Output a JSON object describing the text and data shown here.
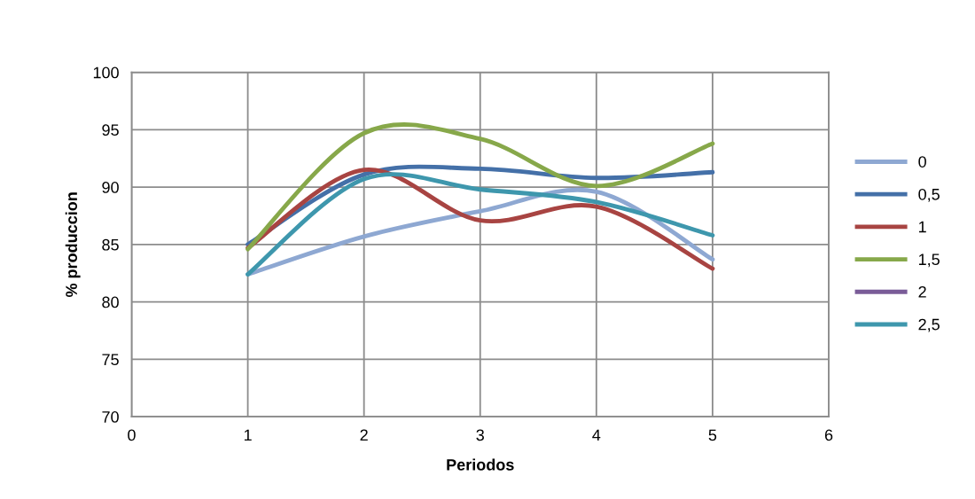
{
  "chart_data": {
    "type": "line",
    "xlabel": "Periodos",
    "ylabel": "% produccion",
    "x": [
      1,
      2,
      3,
      4,
      5
    ],
    "series": [
      {
        "name": "0",
        "color": "#8ea8d2",
        "values": [
          82.4,
          85.7,
          87.9,
          89.6,
          83.7
        ]
      },
      {
        "name": "0,5",
        "color": "#4470a8",
        "values": [
          85.0,
          91.1,
          91.6,
          90.8,
          91.3
        ]
      },
      {
        "name": "1",
        "color": "#a84442",
        "values": [
          84.7,
          91.5,
          87.1,
          88.3,
          82.9
        ]
      },
      {
        "name": "1,5",
        "color": "#87a84a",
        "values": [
          84.6,
          94.7,
          94.2,
          90.1,
          93.8
        ]
      },
      {
        "name": "2",
        "color": "#7a5c98",
        "values": [
          null,
          null,
          null,
          null,
          null
        ]
      },
      {
        "name": "2,5",
        "color": "#3e97ad",
        "values": [
          82.4,
          90.7,
          89.8,
          88.7,
          85.8
        ]
      }
    ],
    "xlim": [
      0,
      6
    ],
    "xticks": [
      0,
      1,
      2,
      3,
      4,
      5,
      6
    ],
    "ylim": [
      70,
      100
    ],
    "yticks": [
      70,
      75,
      80,
      85,
      90,
      95,
      100
    ],
    "grid": true,
    "legend": "right",
    "marker": "none",
    "line_style": "solid"
  }
}
